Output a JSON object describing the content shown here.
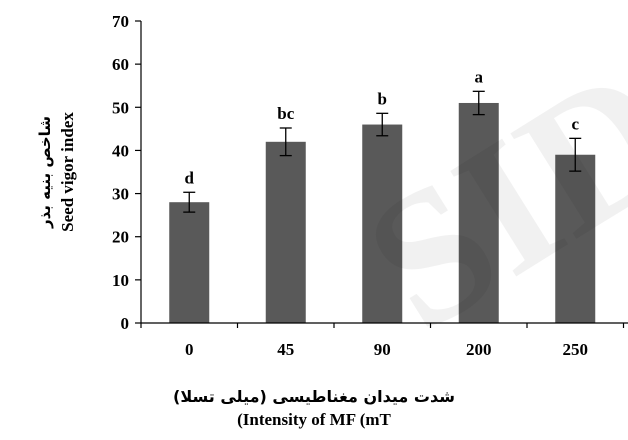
{
  "chart_data": {
    "type": "bar",
    "categories": [
      "0",
      "45",
      "90",
      "200",
      "250"
    ],
    "values": [
      28,
      42,
      46,
      51,
      39
    ],
    "errors": [
      2.3,
      3.2,
      2.6,
      2.7,
      3.8
    ],
    "significance_letters": [
      "d",
      "bc",
      "b",
      "a",
      "c"
    ],
    "ylabel_fa": "شاخص بنیه بذر",
    "ylabel_en": "Seed vigor index",
    "xlabel_fa": "شدت میدان مغناطیسی (میلی تسلا)",
    "xlabel_en": "(Intensity of MF (mT",
    "ylim": [
      0,
      70
    ],
    "yticks": [
      0,
      10,
      20,
      30,
      40,
      50,
      60,
      70
    ],
    "grid": false,
    "legend": "none",
    "bar_color": "#595959"
  }
}
